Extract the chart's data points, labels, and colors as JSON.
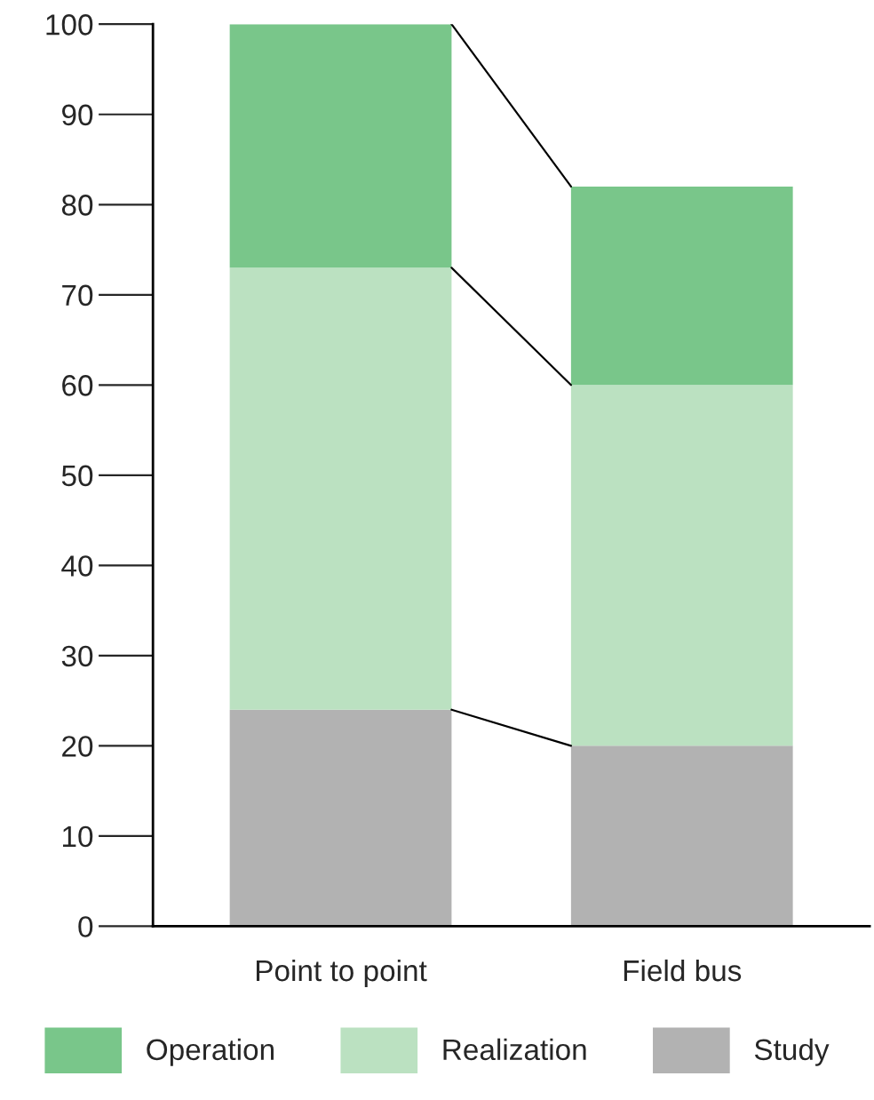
{
  "chart_data": {
    "type": "bar",
    "stacked": true,
    "categories": [
      "Point to point",
      "Field bus"
    ],
    "series": [
      {
        "name": "Study",
        "color": "#b2b2b2",
        "values": [
          24,
          20
        ]
      },
      {
        "name": "Realization",
        "color": "#bbe1c1",
        "values": [
          49,
          40
        ]
      },
      {
        "name": "Operation",
        "color": "#79c68a",
        "values": [
          27,
          22
        ]
      }
    ],
    "ylim": [
      0,
      100
    ],
    "yticks": [
      0,
      10,
      20,
      30,
      40,
      50,
      60,
      70,
      80,
      90,
      100
    ],
    "grid": false,
    "legend": "bottom"
  }
}
